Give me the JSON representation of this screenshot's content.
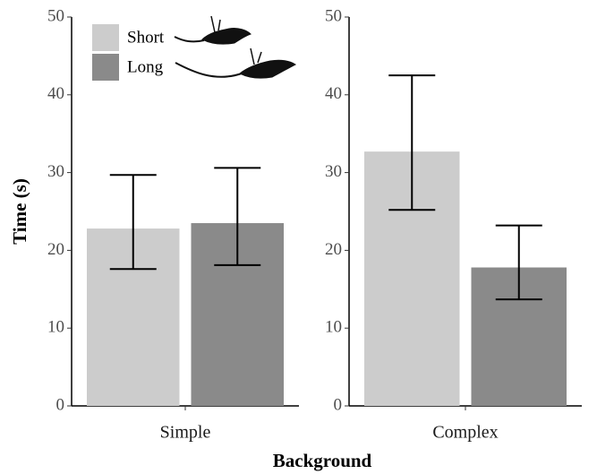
{
  "chart_data": {
    "type": "bar",
    "x_label": "Background",
    "y_label": "Time (s)",
    "categories": [
      "Simple",
      "Complex"
    ],
    "series": [
      {
        "name": "Short",
        "color": "#cccccc",
        "values": [
          22.8,
          32.7
        ],
        "err_low": [
          17.6,
          25.2
        ],
        "err_high": [
          29.7,
          42.5
        ]
      },
      {
        "name": "Long",
        "color": "#8a8a8a",
        "values": [
          23.5,
          17.8
        ],
        "err_low": [
          18.1,
          13.7
        ],
        "err_high": [
          30.6,
          23.2
        ]
      }
    ],
    "ylim": [
      0,
      50
    ],
    "yticks": [
      0,
      10,
      20,
      30,
      40,
      50
    ],
    "legend": "top-left"
  }
}
